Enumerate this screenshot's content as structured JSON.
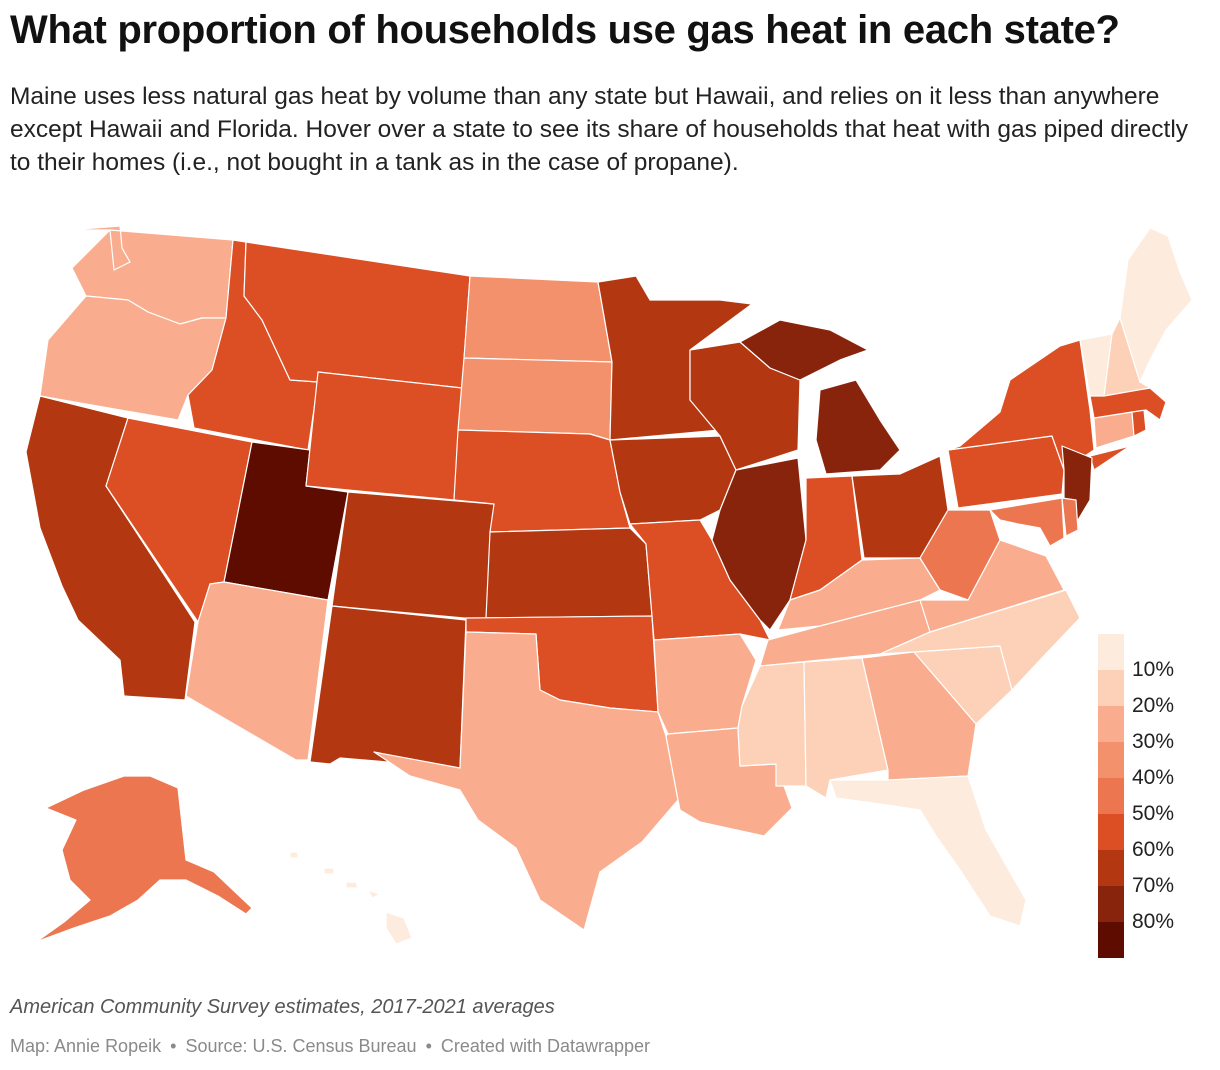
{
  "title": "What proportion of households use gas heat in each state?",
  "subtitle": "Maine uses less natural gas heat by volume than any state but Hawaii, and relies on it less than anywhere except Hawaii and Florida. Hover over a state to see its share of households that heat with gas piped directly to their homes (i.e., not bought in a tank as in the case of propane).",
  "note": "American Community Survey estimates, 2017-2021 averages",
  "credits": {
    "map_by": "Map: Annie Ropeik",
    "source": "Source: U.S. Census Bureau",
    "tool": "Created with Datawrapper",
    "separator": "•"
  },
  "legend": {
    "labels": [
      "10%",
      "20%",
      "30%",
      "40%",
      "50%",
      "60%",
      "70%",
      "80%"
    ],
    "colors": [
      "#fdebdd",
      "#fcd1b8",
      "#f9ad8e",
      "#f4916d",
      "#ec7650",
      "#dc4e23",
      "#b33710",
      "#89240c",
      "#5e0b00"
    ]
  },
  "colors": {
    "c0": "#fdebdd",
    "c1": "#fcd1b8",
    "c2": "#f9ad8e",
    "c3": "#f4916d",
    "c4": "#ec7650",
    "c5": "#dc4e23",
    "c6": "#b33710",
    "c7": "#89240c",
    "c8": "#5e0b00"
  },
  "states": [
    {
      "id": "WA",
      "shade": "c2"
    },
    {
      "id": "OR",
      "shade": "c2"
    },
    {
      "id": "CA",
      "shade": "c6"
    },
    {
      "id": "ID",
      "shade": "c5"
    },
    {
      "id": "NV",
      "shade": "c5"
    },
    {
      "id": "UT",
      "shade": "c8"
    },
    {
      "id": "AZ",
      "shade": "c2"
    },
    {
      "id": "MT",
      "shade": "c5"
    },
    {
      "id": "WY",
      "shade": "c5"
    },
    {
      "id": "CO",
      "shade": "c6"
    },
    {
      "id": "NM",
      "shade": "c6"
    },
    {
      "id": "ND",
      "shade": "c3"
    },
    {
      "id": "SD",
      "shade": "c3"
    },
    {
      "id": "NE",
      "shade": "c5"
    },
    {
      "id": "KS",
      "shade": "c6"
    },
    {
      "id": "OK",
      "shade": "c5"
    },
    {
      "id": "TX",
      "shade": "c2"
    },
    {
      "id": "MN",
      "shade": "c6"
    },
    {
      "id": "IA",
      "shade": "c6"
    },
    {
      "id": "MO",
      "shade": "c5"
    },
    {
      "id": "AR",
      "shade": "c2"
    },
    {
      "id": "LA",
      "shade": "c2"
    },
    {
      "id": "WI",
      "shade": "c6"
    },
    {
      "id": "IL",
      "shade": "c7"
    },
    {
      "id": "MI",
      "shade": "c7"
    },
    {
      "id": "IN",
      "shade": "c5"
    },
    {
      "id": "OH",
      "shade": "c6"
    },
    {
      "id": "KY",
      "shade": "c2"
    },
    {
      "id": "TN",
      "shade": "c2"
    },
    {
      "id": "MS",
      "shade": "c1"
    },
    {
      "id": "AL",
      "shade": "c1"
    },
    {
      "id": "GA",
      "shade": "c2"
    },
    {
      "id": "FL",
      "shade": "c0"
    },
    {
      "id": "SC",
      "shade": "c1"
    },
    {
      "id": "NC",
      "shade": "c1"
    },
    {
      "id": "VA",
      "shade": "c2"
    },
    {
      "id": "WV",
      "shade": "c4"
    },
    {
      "id": "PA",
      "shade": "c5"
    },
    {
      "id": "NY",
      "shade": "c5"
    },
    {
      "id": "NJ",
      "shade": "c7"
    },
    {
      "id": "DE",
      "shade": "c4"
    },
    {
      "id": "MD",
      "shade": "c4"
    },
    {
      "id": "CT",
      "shade": "c2"
    },
    {
      "id": "RI",
      "shade": "c5"
    },
    {
      "id": "MA",
      "shade": "c5"
    },
    {
      "id": "VT",
      "shade": "c0"
    },
    {
      "id": "NH",
      "shade": "c1"
    },
    {
      "id": "ME",
      "shade": "c0"
    },
    {
      "id": "AK",
      "shade": "c4"
    },
    {
      "id": "HI",
      "shade": "c0"
    }
  ]
}
